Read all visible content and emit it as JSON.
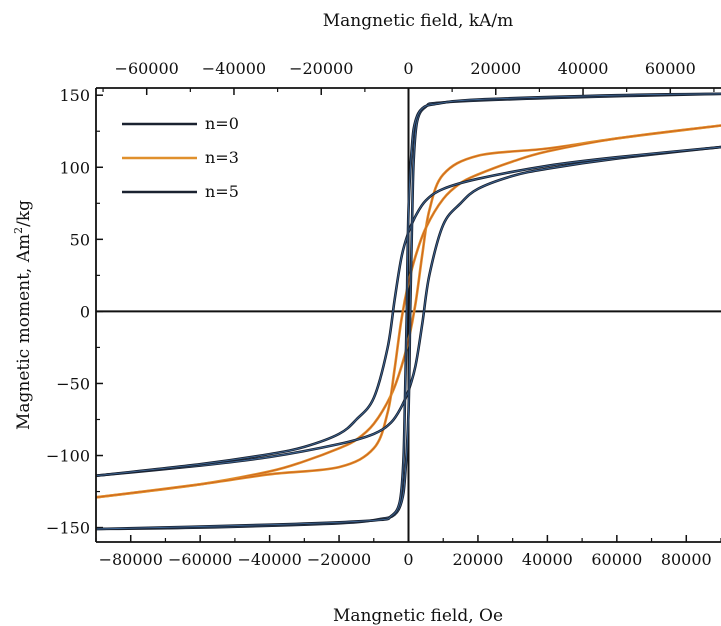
{
  "chart_data": {
    "type": "line",
    "xlabel": "Mangnetic field, Oe",
    "x2label": "Mangnetic field, kA/m",
    "ylabel_main": "Magnetic moment, Am",
    "ylabel_sup": "2",
    "ylabel_tail": "/kg",
    "xlim": [
      -90000,
      90000
    ],
    "x2lim": [
      -71620,
      71620
    ],
    "ylim": [
      -160,
      155
    ],
    "x_ticks": [
      -80000,
      -60000,
      -40000,
      -20000,
      0,
      20000,
      40000,
      60000,
      80000
    ],
    "x_tick_labels": [
      "−80000",
      "−60000",
      "−40000",
      "−20000",
      "0",
      "20000",
      "40000",
      "60000",
      "80000"
    ],
    "x2_ticks": [
      -60000,
      -40000,
      -20000,
      0,
      20000,
      40000,
      60000
    ],
    "x2_tick_labels": [
      "−60000",
      "−40000",
      "−20000",
      "0",
      "20000",
      "40000",
      "60000"
    ],
    "y_ticks": [
      -150,
      -100,
      -50,
      0,
      50,
      100,
      150
    ],
    "y_tick_labels": [
      "−150",
      "−100",
      "−50",
      "0",
      "50",
      "100",
      "150"
    ],
    "legend_position": "top-left",
    "grid": false,
    "series": [
      {
        "name": "n=0",
        "color": "#1a2230",
        "accent": "#4a7db8",
        "upper": [
          [
            -90000,
            -151
          ],
          [
            -60000,
            -150
          ],
          [
            -20000,
            -147
          ],
          [
            -8000,
            -144
          ],
          [
            -4000,
            -141
          ],
          [
            -2000,
            -132
          ],
          [
            -1000,
            -115
          ],
          [
            0,
            -70
          ],
          [
            500,
            0
          ],
          [
            1000,
            60
          ],
          [
            1500,
            105
          ],
          [
            2500,
            132
          ],
          [
            5000,
            142
          ],
          [
            10000,
            145
          ],
          [
            40000,
            148
          ],
          [
            90000,
            151
          ]
        ],
        "lower": [
          [
            -90000,
            -151
          ],
          [
            -40000,
            -148
          ],
          [
            -10000,
            -145
          ],
          [
            -5000,
            -142
          ],
          [
            -2500,
            -132
          ],
          [
            -1500,
            -105
          ],
          [
            -1000,
            -60
          ],
          [
            -500,
            0
          ],
          [
            0,
            70
          ],
          [
            1000,
            115
          ],
          [
            2000,
            132
          ],
          [
            4000,
            141
          ],
          [
            8000,
            144
          ],
          [
            20000,
            147
          ],
          [
            60000,
            150
          ],
          [
            90000,
            151
          ]
        ]
      },
      {
        "name": "n=3",
        "color": "#e0902c",
        "accent": "#c8531a",
        "upper": [
          [
            -90000,
            -129
          ],
          [
            -60000,
            -120
          ],
          [
            -40000,
            -111
          ],
          [
            -30000,
            -104
          ],
          [
            -20000,
            -95
          ],
          [
            -15000,
            -89
          ],
          [
            -10000,
            -78
          ],
          [
            -5000,
            -58
          ],
          [
            -2000,
            -38
          ],
          [
            0,
            -20
          ],
          [
            2000,
            5
          ],
          [
            4000,
            40
          ],
          [
            6000,
            70
          ],
          [
            10000,
            95
          ],
          [
            20000,
            108
          ],
          [
            40000,
            113
          ],
          [
            60000,
            120
          ],
          [
            90000,
            129
          ]
        ],
        "lower": [
          [
            -90000,
            -129
          ],
          [
            -60000,
            -120
          ],
          [
            -40000,
            -113
          ],
          [
            -20000,
            -108
          ],
          [
            -10000,
            -95
          ],
          [
            -6000,
            -70
          ],
          [
            -4000,
            -40
          ],
          [
            -2000,
            -5
          ],
          [
            0,
            20
          ],
          [
            2000,
            38
          ],
          [
            5000,
            58
          ],
          [
            10000,
            78
          ],
          [
            15000,
            89
          ],
          [
            20000,
            95
          ],
          [
            30000,
            104
          ],
          [
            40000,
            111
          ],
          [
            60000,
            120
          ],
          [
            90000,
            129
          ]
        ]
      },
      {
        "name": "n=5",
        "color": "#1a2230",
        "accent": "#4a7db8",
        "upper": [
          [
            -90000,
            -114
          ],
          [
            -60000,
            -107
          ],
          [
            -40000,
            -101
          ],
          [
            -20000,
            -92
          ],
          [
            -10000,
            -85
          ],
          [
            -5000,
            -77
          ],
          [
            -2000,
            -66
          ],
          [
            0,
            -55
          ],
          [
            2000,
            -38
          ],
          [
            4000,
            -8
          ],
          [
            6000,
            25
          ],
          [
            10000,
            60
          ],
          [
            15000,
            75
          ],
          [
            20000,
            85
          ],
          [
            30000,
            94
          ],
          [
            40000,
            99
          ],
          [
            60000,
            106
          ],
          [
            90000,
            114
          ]
        ],
        "lower": [
          [
            -90000,
            -114
          ],
          [
            -60000,
            -106
          ],
          [
            -40000,
            -99
          ],
          [
            -30000,
            -94
          ],
          [
            -20000,
            -85
          ],
          [
            -15000,
            -75
          ],
          [
            -10000,
            -60
          ],
          [
            -6000,
            -25
          ],
          [
            -4000,
            8
          ],
          [
            -2000,
            38
          ],
          [
            0,
            55
          ],
          [
            2000,
            66
          ],
          [
            5000,
            77
          ],
          [
            10000,
            85
          ],
          [
            20000,
            92
          ],
          [
            40000,
            101
          ],
          [
            60000,
            107
          ],
          [
            90000,
            114
          ]
        ]
      }
    ]
  }
}
